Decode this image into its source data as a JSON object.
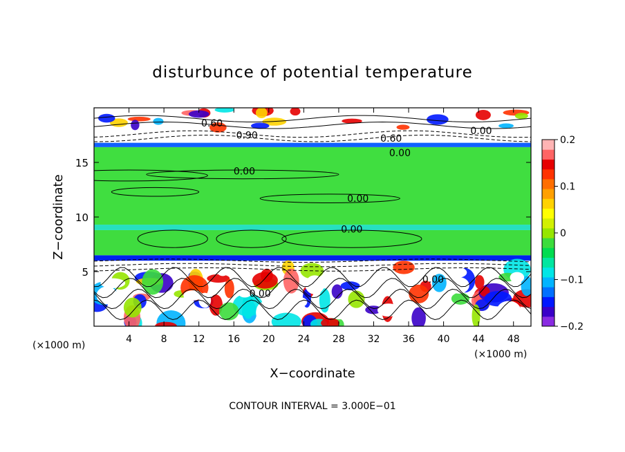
{
  "chart_data": {
    "type": "heatmap",
    "title": "disturbunce of potential temperature",
    "xlabel": "X−coordinate",
    "ylabel": "Z−coordinate",
    "x_unit": "(×1000 m)",
    "x_unit_right": "(×1000 m)",
    "xlim": [
      0,
      50
    ],
    "ylim": [
      0,
      20
    ],
    "x_ticks": [
      4,
      8,
      12,
      16,
      20,
      24,
      28,
      32,
      36,
      40,
      44,
      48
    ],
    "x_tick_labels": [
      "4",
      "8",
      "12",
      "16",
      "20",
      "24",
      "28",
      "32",
      "36",
      "40",
      "44",
      "48"
    ],
    "y_ticks": [
      5,
      10,
      15
    ],
    "y_tick_labels": [
      "5",
      "10",
      "15"
    ],
    "footer": "CONTOUR INTERVAL = 3.000E−01",
    "colorbar": {
      "range": [
        -0.2,
        0.2
      ],
      "tick_values": [
        0.2,
        0.1,
        0,
        -0.1,
        -0.2
      ],
      "tick_labels": [
        "0.2",
        "0.1",
        "0",
        "−0.1",
        "−0.2"
      ],
      "colors": [
        "#8a2be2",
        "#3a00c8",
        "#0018ff",
        "#0070ff",
        "#00b4ff",
        "#00e6e6",
        "#00e6a0",
        "#00dc50",
        "#3cdc3c",
        "#96e600",
        "#d2f000",
        "#ffff00",
        "#ffd200",
        "#ffa000",
        "#ff6e00",
        "#ff3200",
        "#e60000",
        "#ff6464",
        "#ffb4b4"
      ]
    },
    "bands": [
      {
        "z": [
          0,
          6.0
        ],
        "color": "#ffffff"
      },
      {
        "z": [
          6.0,
          6.5
        ],
        "color": "#0022ee"
      },
      {
        "z": [
          6.5,
          8.8
        ],
        "color": "#3fdc3f"
      },
      {
        "z": [
          8.8,
          9.3
        ],
        "color": "#26e0c0"
      },
      {
        "z": [
          9.3,
          16.4
        ],
        "color": "#40de40"
      },
      {
        "z": [
          16.4,
          16.8
        ],
        "color": "#1060ff"
      },
      {
        "z": [
          16.8,
          18.0
        ],
        "color": "#ffffff"
      },
      {
        "z": [
          18.0,
          20.0
        ],
        "color": "#ffffff"
      }
    ],
    "contour_labels": [
      {
        "text": "0.60",
        "x": 13.5,
        "z": 18.6
      },
      {
        "text": "0.90",
        "x": 17.5,
        "z": 17.5
      },
      {
        "text": "0.60",
        "x": 34.0,
        "z": 17.2
      },
      {
        "text": "0.00",
        "x": 35.0,
        "z": 15.9
      },
      {
        "text": "0.00",
        "x": 44.3,
        "z": 17.9
      },
      {
        "text": "0.00",
        "x": 17.2,
        "z": 14.2
      },
      {
        "text": "0.00",
        "x": 30.2,
        "z": 11.7
      },
      {
        "text": "0.00",
        "x": 29.5,
        "z": 8.9
      },
      {
        "text": "0.00",
        "x": 38.8,
        "z": 4.3
      },
      {
        "text": "0.00",
        "x": 19.0,
        "z": 3.0
      }
    ]
  }
}
